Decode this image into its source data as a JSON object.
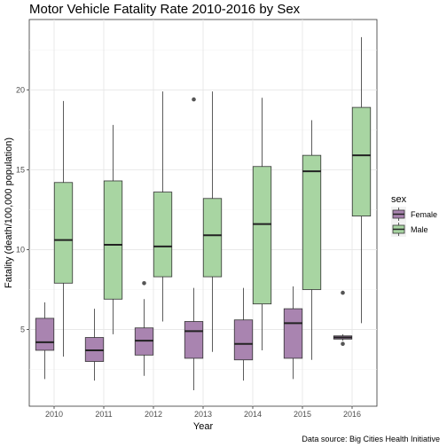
{
  "title": "Motor Vehicle Fatality Rate 2010-2016 by Sex",
  "caption": "Data source: Big Cities Health Initiative",
  "chart_data": {
    "type": "boxplot",
    "title": "Motor Vehicle Fatality Rate 2010-2016 by Sex",
    "xlabel": "Year",
    "ylabel": "Fatality (death/100,000 population)",
    "categories": [
      "2010",
      "2011",
      "2012",
      "2013",
      "2014",
      "2015",
      "2016"
    ],
    "ylim": [
      0.2,
      24.4
    ],
    "yticks": [
      5,
      10,
      15,
      20
    ],
    "grid": true,
    "legend": {
      "title": "sex",
      "position": "right"
    },
    "series": [
      {
        "name": "Female",
        "color": "#a984b0",
        "boxes": [
          {
            "min": 1.9,
            "q1": 3.7,
            "median": 4.2,
            "q3": 5.7,
            "max": 6.7,
            "outliers": []
          },
          {
            "min": 1.8,
            "q1": 3.0,
            "median": 3.7,
            "q3": 4.5,
            "max": 6.3,
            "outliers": []
          },
          {
            "min": 2.1,
            "q1": 3.4,
            "median": 4.3,
            "q3": 5.1,
            "max": 6.9,
            "outliers": [
              7.9
            ]
          },
          {
            "min": 1.2,
            "q1": 3.2,
            "median": 4.9,
            "q3": 5.5,
            "max": 7.6,
            "outliers": [
              19.4
            ]
          },
          {
            "min": 1.8,
            "q1": 3.1,
            "median": 4.1,
            "q3": 5.6,
            "max": 7.6,
            "outliers": []
          },
          {
            "min": 1.9,
            "q1": 3.2,
            "median": 5.4,
            "q3": 6.3,
            "max": 7.7,
            "outliers": []
          },
          {
            "min": 4.3,
            "q1": 4.4,
            "median": 4.5,
            "q3": 4.6,
            "max": 4.7,
            "outliers": [
              4.1,
              7.3
            ]
          }
        ]
      },
      {
        "name": "Male",
        "color": "#a8d5a2",
        "boxes": [
          {
            "min": 3.3,
            "q1": 7.9,
            "median": 10.6,
            "q3": 14.2,
            "max": 19.3,
            "outliers": []
          },
          {
            "min": 4.7,
            "q1": 6.9,
            "median": 10.3,
            "q3": 14.3,
            "max": 17.8,
            "outliers": []
          },
          {
            "min": 5.5,
            "q1": 8.3,
            "median": 10.2,
            "q3": 13.6,
            "max": 19.9,
            "outliers": []
          },
          {
            "min": 3.6,
            "q1": 8.3,
            "median": 10.9,
            "q3": 13.2,
            "max": 19.9,
            "outliers": []
          },
          {
            "min": 3.7,
            "q1": 6.6,
            "median": 11.6,
            "q3": 15.2,
            "max": 19.5,
            "outliers": []
          },
          {
            "min": 3.1,
            "q1": 7.5,
            "median": 14.9,
            "q3": 15.9,
            "max": 18.1,
            "outliers": []
          },
          {
            "min": 5.4,
            "q1": 12.1,
            "median": 15.9,
            "q3": 18.9,
            "max": 23.3,
            "outliers": []
          }
        ]
      }
    ]
  }
}
